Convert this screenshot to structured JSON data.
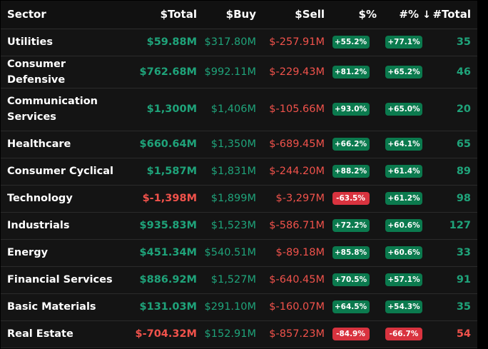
{
  "colors": {
    "positive": "#1fa37a",
    "negative": "#f0524b",
    "badge_positive": "#0b7a4e",
    "badge_negative": "#d9333f"
  },
  "headers": {
    "sector": "Sector",
    "total": "$Total",
    "buy": "$Buy",
    "sell": "$Sell",
    "pct": "$%",
    "count_pct": "#%",
    "sort_icon": "↓",
    "count": "#Total"
  },
  "rows": [
    {
      "sector": "Utilities",
      "total": "$59.88M",
      "total_sign": "pos",
      "buy": "$317.80M",
      "sell": "$-257.91M",
      "pct": "+55.2%",
      "pct_sign": "up",
      "count_pct": "+77.1%",
      "count_pct_sign": "up",
      "count": "35",
      "count_sign": "pos"
    },
    {
      "sector": "Consumer Defensive",
      "total": "$762.68M",
      "total_sign": "pos",
      "buy": "$992.11M",
      "sell": "$-229.43M",
      "pct": "+81.2%",
      "pct_sign": "up",
      "count_pct": "+65.2%",
      "count_pct_sign": "up",
      "count": "46",
      "count_sign": "pos"
    },
    {
      "sector": "Communication Services",
      "total": "$1,300M",
      "total_sign": "pos",
      "buy": "$1,406M",
      "sell": "$-105.66M",
      "pct": "+93.0%",
      "pct_sign": "up",
      "count_pct": "+65.0%",
      "count_pct_sign": "up",
      "count": "20",
      "count_sign": "pos"
    },
    {
      "sector": "Healthcare",
      "total": "$660.64M",
      "total_sign": "pos",
      "buy": "$1,350M",
      "sell": "$-689.45M",
      "pct": "+66.2%",
      "pct_sign": "up",
      "count_pct": "+64.1%",
      "count_pct_sign": "up",
      "count": "65",
      "count_sign": "pos"
    },
    {
      "sector": "Consumer Cyclical",
      "total": "$1,587M",
      "total_sign": "pos",
      "buy": "$1,831M",
      "sell": "$-244.20M",
      "pct": "+88.2%",
      "pct_sign": "up",
      "count_pct": "+61.4%",
      "count_pct_sign": "up",
      "count": "89",
      "count_sign": "pos"
    },
    {
      "sector": "Technology",
      "total": "$-1,398M",
      "total_sign": "neg",
      "buy": "$1,899M",
      "sell": "$-3,297M",
      "pct": "-63.5%",
      "pct_sign": "down",
      "count_pct": "+61.2%",
      "count_pct_sign": "up",
      "count": "98",
      "count_sign": "pos"
    },
    {
      "sector": "Industrials",
      "total": "$935.83M",
      "total_sign": "pos",
      "buy": "$1,523M",
      "sell": "$-586.71M",
      "pct": "+72.2%",
      "pct_sign": "up",
      "count_pct": "+60.6%",
      "count_pct_sign": "up",
      "count": "127",
      "count_sign": "pos"
    },
    {
      "sector": "Energy",
      "total": "$451.34M",
      "total_sign": "pos",
      "buy": "$540.51M",
      "sell": "$-89.18M",
      "pct": "+85.8%",
      "pct_sign": "up",
      "count_pct": "+60.6%",
      "count_pct_sign": "up",
      "count": "33",
      "count_sign": "pos"
    },
    {
      "sector": "Financial Services",
      "total": "$886.92M",
      "total_sign": "pos",
      "buy": "$1,527M",
      "sell": "$-640.45M",
      "pct": "+70.5%",
      "pct_sign": "up",
      "count_pct": "+57.1%",
      "count_pct_sign": "up",
      "count": "91",
      "count_sign": "pos"
    },
    {
      "sector": "Basic Materials",
      "total": "$131.03M",
      "total_sign": "pos",
      "buy": "$291.10M",
      "sell": "$-160.07M",
      "pct": "+64.5%",
      "pct_sign": "up",
      "count_pct": "+54.3%",
      "count_pct_sign": "up",
      "count": "35",
      "count_sign": "pos"
    },
    {
      "sector": "Real Estate",
      "total": "$-704.32M",
      "total_sign": "neg",
      "buy": "$152.91M",
      "sell": "$-857.23M",
      "pct": "-84.9%",
      "pct_sign": "down",
      "count_pct": "-66.7%",
      "count_pct_sign": "down",
      "count": "54",
      "count_sign": "neg"
    }
  ]
}
